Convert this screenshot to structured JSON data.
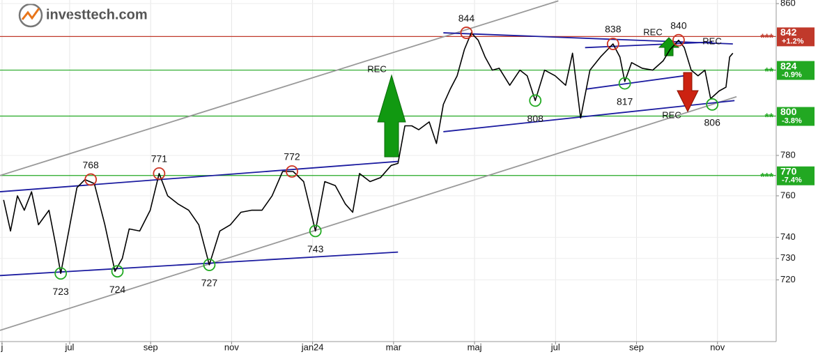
{
  "chart_data": {
    "type": "line",
    "logo": "investtech.com",
    "log_scale": true,
    "grid": true,
    "xlim": [
      -0.72,
      18.45
    ],
    "xticks": [
      {
        "value": -0.67,
        "label": "j"
      },
      {
        "value": 1,
        "label": "jul"
      },
      {
        "value": 3,
        "label": "sep"
      },
      {
        "value": 5,
        "label": "nov"
      },
      {
        "value": 7,
        "label": "jan24"
      },
      {
        "value": 9,
        "label": "mar"
      },
      {
        "value": 11,
        "label": "maj"
      },
      {
        "value": 13,
        "label": "jul"
      },
      {
        "value": 15,
        "label": "sep"
      },
      {
        "value": 17,
        "label": "nov"
      }
    ],
    "ylim": [
      692,
      862
    ],
    "yticks": [
      720,
      730,
      740,
      760,
      780,
      860
    ],
    "series": [
      {
        "color": "#000000",
        "x": [
          -0.63,
          -0.46,
          -0.29,
          -0.12,
          0.06,
          0.23,
          0.49,
          0.66,
          0.78,
          0.95,
          1.18,
          1.38,
          1.61,
          1.87,
          2.12,
          2.3,
          2.47,
          2.73,
          2.99,
          3.21,
          3.42,
          3.68,
          3.94,
          4.19,
          4.45,
          4.71,
          4.97,
          5.23,
          5.49,
          5.75,
          6.0,
          6.26,
          6.52,
          6.78,
          6.95,
          7.07,
          7.3,
          7.56,
          7.81,
          7.99,
          8.16,
          8.42,
          8.68,
          8.94,
          9.11,
          9.28,
          9.45,
          9.62,
          9.88,
          10.06,
          10.23,
          10.4,
          10.57,
          10.75,
          10.92,
          11.09,
          11.26,
          11.44,
          11.61,
          11.87,
          12.12,
          12.3,
          12.5,
          12.73,
          12.99,
          13.25,
          13.42,
          13.62,
          13.85,
          14.11,
          14.42,
          14.59,
          14.71,
          14.88,
          15.14,
          15.4,
          15.66,
          15.83,
          16.04,
          16.18,
          16.35,
          16.52,
          16.69,
          16.83,
          17.04,
          17.21,
          17.3,
          17.38
        ],
        "values": [
          758,
          743,
          760,
          753,
          762,
          746,
          753,
          736,
          723,
          740,
          764,
          768,
          766,
          746,
          724,
          730,
          744,
          743,
          753,
          771,
          760,
          756,
          753,
          746,
          727,
          743,
          746,
          752,
          753,
          753,
          760,
          772,
          772,
          767,
          753,
          743,
          767,
          765,
          756,
          752,
          771,
          767,
          769,
          775,
          776,
          795,
          795,
          793,
          797,
          786,
          806,
          814,
          821,
          835,
          844,
          840,
          831,
          824,
          825,
          816,
          824,
          821,
          808,
          824,
          821,
          816,
          833,
          799,
          824,
          831,
          838,
          831,
          818,
          828,
          825,
          824,
          829,
          835,
          840,
          836,
          824,
          821,
          824,
          809,
          813,
          815,
          831,
          833
        ]
      }
    ],
    "trendlines": [
      {
        "color": "#999999",
        "x": [
          -0.72,
          13.07
        ],
        "values": [
          770,
          861.5
        ]
      },
      {
        "color": "#999999",
        "x": [
          -0.72,
          17.47
        ],
        "values": [
          697,
          810
        ]
      },
      {
        "color": "#1c1ca0",
        "x": [
          -0.72,
          9.11
        ],
        "values": [
          722,
          733
        ]
      },
      {
        "color": "#1c1ca0",
        "x": [
          -0.72,
          9.11
        ],
        "values": [
          762,
          777
        ]
      },
      {
        "color": "#1c1ca0",
        "x": [
          10.23,
          17.42
        ],
        "values": [
          792,
          808
        ]
      },
      {
        "color": "#1c1ca0",
        "x": [
          10.23,
          17.38
        ],
        "values": [
          844,
          838
        ]
      },
      {
        "color": "#1c1ca0",
        "x": [
          13.76,
          16.18
        ],
        "values": [
          814,
          821
        ]
      },
      {
        "color": "#1c1ca0",
        "x": [
          13.73,
          16.87
        ],
        "values": [
          836,
          839
        ]
      }
    ],
    "pivots": [
      {
        "x": 0.78,
        "value": 723,
        "color": "#22aa22"
      },
      {
        "x": 2.18,
        "value": 724,
        "color": "#22aa22"
      },
      {
        "x": 4.45,
        "value": 727,
        "color": "#22aa22"
      },
      {
        "x": 7.07,
        "value": 743,
        "color": "#22aa22"
      },
      {
        "x": 1.52,
        "value": 768,
        "color": "#cc3322"
      },
      {
        "x": 3.21,
        "value": 771,
        "color": "#cc3322"
      },
      {
        "x": 6.49,
        "value": 772,
        "color": "#cc3322"
      },
      {
        "x": 10.8,
        "value": 844,
        "color": "#cc3322"
      },
      {
        "x": 12.5,
        "value": 808,
        "color": "#22aa22"
      },
      {
        "x": 14.42,
        "value": 838,
        "color": "#cc3322"
      },
      {
        "x": 14.71,
        "value": 817,
        "color": "#22aa22"
      },
      {
        "x": 16.04,
        "value": 840,
        "color": "#cc3322"
      },
      {
        "x": 16.87,
        "value": 806,
        "color": "#22aa22"
      }
    ],
    "annotations": [
      "REC",
      "REC",
      "REC",
      "REC"
    ],
    "levels": [
      {
        "value": 842,
        "change": "+1.2%",
        "stars": "***",
        "color": "#c0392b"
      },
      {
        "value": 824,
        "change": "-0.9%",
        "stars": "**",
        "color": "#22a822"
      },
      {
        "value": 800,
        "change": "-3.8%",
        "stars": "**",
        "color": "#22a822"
      },
      {
        "value": 770,
        "change": "-7.4%",
        "stars": "***",
        "color": "#22a822"
      }
    ]
  }
}
